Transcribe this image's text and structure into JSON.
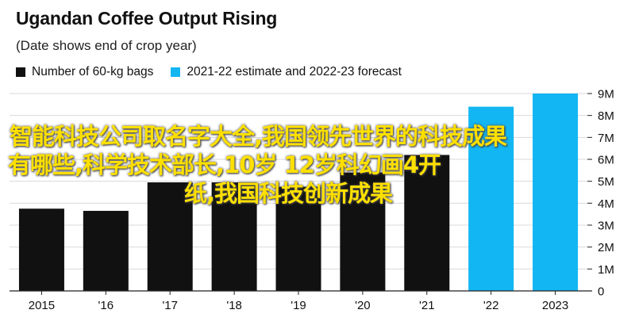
{
  "colors": {
    "actual": "#111111",
    "forecast": "#12b6f3",
    "gridline": "#d9d9d9",
    "axis": "#222222",
    "overlay_text": "#ffe000"
  },
  "overlay": {
    "line1": "智能科技公司取名字大全,我国领先世界的科技成果",
    "line2": "有哪些,科学技术部长,10岁 12岁科幻画4开",
    "line3": "纸,我国科技创新成果"
  },
  "chart_data": {
    "type": "bar",
    "title": "Ugandan Coffee Output Rising",
    "subtitle": "(Date shows end of crop year)",
    "categories": [
      "2015",
      "'16",
      "'17",
      "'18",
      "'19",
      "'20",
      "'21",
      "'22",
      "2023"
    ],
    "series": [
      {
        "name": "Number of 60-kg bags",
        "color": "#111111",
        "values": [
          3.75,
          3.65,
          4.95,
          4.95,
          4.75,
          5.4,
          6.2,
          null,
          null
        ]
      },
      {
        "name": "2021-22 estimate and 2022-23 forecast",
        "color": "#12b6f3",
        "values": [
          null,
          null,
          null,
          null,
          null,
          null,
          null,
          8.4,
          9.0
        ]
      }
    ],
    "yticks": [
      "0",
      "1M",
      "2M",
      "3M",
      "4M",
      "5M",
      "6M",
      "7M",
      "8M",
      "9M"
    ],
    "ylim": [
      0,
      9
    ],
    "yaxis_side": "right",
    "grid": true,
    "legend_position": "top-left"
  }
}
